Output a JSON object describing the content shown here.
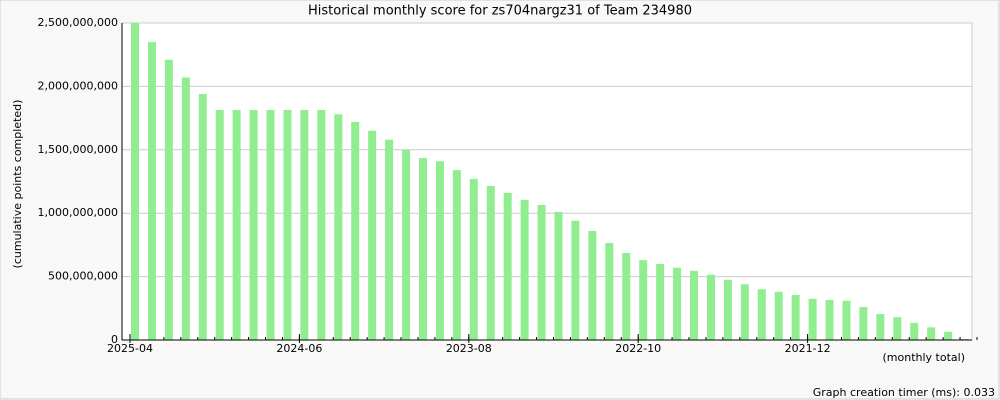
{
  "chart_data": {
    "type": "bar",
    "title": "Historical monthly score for zs704nargz31 of Team 234980",
    "y_label": "(cumulative points completed)",
    "x_label": "(monthly total)",
    "footer": "Graph creation timer (ms): 0.033",
    "color": "#90ee90",
    "grid": true,
    "categories": [
      "2025-04",
      null,
      null,
      null,
      null,
      null,
      null,
      null,
      null,
      null,
      "2024-06",
      null,
      null,
      null,
      null,
      null,
      null,
      null,
      null,
      null,
      "2023-08",
      null,
      null,
      null,
      null,
      null,
      null,
      null,
      null,
      null,
      "2022-10",
      null,
      null,
      null,
      null,
      null,
      null,
      null,
      null,
      null,
      "2021-12",
      null,
      null,
      null,
      null,
      null,
      null,
      null,
      null,
      null
    ],
    "values": [
      2500000000,
      2350000000,
      2210000000,
      2070000000,
      1940000000,
      1814000000,
      1814000000,
      1814000000,
      1814000000,
      1814000000,
      1814000000,
      1814000000,
      1780000000,
      1720000000,
      1650000000,
      1580000000,
      1500000000,
      1435000000,
      1410000000,
      1340000000,
      1270000000,
      1215000000,
      1160000000,
      1105000000,
      1065000000,
      1010000000,
      940000000,
      860000000,
      765000000,
      686000000,
      630000000,
      600000000,
      570000000,
      545000000,
      515000000,
      475000000,
      440000000,
      400000000,
      380000000,
      355000000,
      325000000,
      315000000,
      310000000,
      260000000,
      205000000,
      180000000,
      135000000,
      100000000,
      65000000,
      8000000
    ],
    "ylim": [
      0,
      2500000000
    ],
    "yticks": [
      0,
      {
        "value": 500000000,
        "label": "500,000,000"
      },
      {
        "value": 1000000000,
        "label": "1,000,000,000"
      },
      {
        "value": 1500000000,
        "label": "1,500,000,000"
      },
      {
        "value": 2000000000,
        "label": "2,000,000,000"
      },
      {
        "value": 2500000000,
        "label": "2,500,000,000"
      }
    ]
  }
}
